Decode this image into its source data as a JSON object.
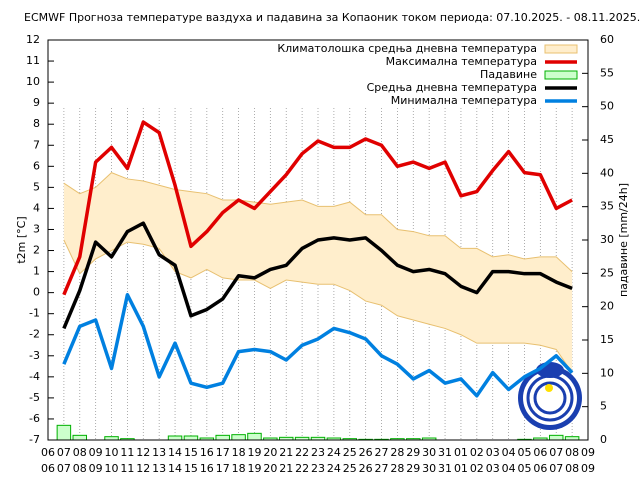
{
  "chart_data": {
    "type": "line",
    "title": "ECMWF Прогноза температуре ваздуха и падавина за Копаоник током периода: 07.10.2025. - 08.11.2025.",
    "y_label": "t2m [°C]",
    "y2_label": "падавине [mm/24h]",
    "categories": [
      "06",
      "07",
      "08",
      "09",
      "10",
      "11",
      "12",
      "13",
      "14",
      "15",
      "16",
      "17",
      "18",
      "19",
      "20",
      "21",
      "22",
      "23",
      "24",
      "25",
      "26",
      "27",
      "28",
      "29",
      "30",
      "31",
      "01",
      "02",
      "03",
      "04",
      "05",
      "06",
      "07",
      "08",
      "09"
    ],
    "ylim": [
      -7,
      12
    ],
    "yticks": [
      -7,
      -6,
      -5,
      -4,
      -3,
      -2,
      -1,
      0,
      1,
      2,
      3,
      4,
      5,
      6,
      7,
      8,
      9,
      10,
      11,
      12
    ],
    "y2lim": [
      0,
      60
    ],
    "y2ticks": [
      0,
      5,
      10,
      15,
      20,
      25,
      30,
      35,
      40,
      45,
      50,
      55,
      60
    ],
    "legend": "top-right",
    "series": [
      {
        "name": "Климатолошка средња дневна температура",
        "type": "band",
        "color": "#ffeecc",
        "edge_color": "#e8c070",
        "upper": [
          null,
          5.2,
          4.7,
          5.0,
          5.7,
          5.4,
          5.3,
          5.1,
          4.9,
          4.8,
          4.7,
          4.4,
          4.4,
          4.3,
          4.2,
          4.3,
          4.4,
          4.1,
          4.1,
          4.3,
          3.7,
          3.7,
          3.0,
          2.9,
          2.7,
          2.7,
          2.1,
          2.1,
          1.7,
          1.8,
          1.6,
          1.7,
          1.7,
          1.0,
          null
        ],
        "lower": [
          null,
          2.5,
          0.9,
          1.6,
          2.0,
          2.4,
          2.3,
          2.1,
          1.0,
          0.7,
          1.1,
          0.7,
          0.6,
          0.6,
          0.2,
          0.6,
          0.5,
          0.4,
          0.4,
          0.1,
          -0.4,
          -0.6,
          -1.1,
          -1.3,
          -1.5,
          -1.7,
          -2.0,
          -2.4,
          -2.4,
          -2.4,
          -2.4,
          -2.5,
          -2.7,
          -3.8,
          null
        ]
      },
      {
        "name": "Максимална температура",
        "type": "line",
        "color": "#e00000",
        "values": [
          null,
          -0.1,
          1.7,
          6.2,
          6.9,
          5.9,
          8.1,
          7.6,
          5.1,
          2.2,
          2.9,
          3.8,
          4.4,
          4.0,
          4.8,
          5.6,
          6.6,
          7.2,
          6.9,
          6.9,
          7.3,
          7.0,
          6.0,
          6.2,
          5.9,
          6.2,
          4.6,
          4.8,
          5.8,
          6.7,
          5.7,
          5.6,
          4.0,
          4.4,
          null
        ]
      },
      {
        "name": "Падавине",
        "type": "bar",
        "axis": "y2",
        "color": "#ccffcc",
        "edge_color": "#00b000",
        "values": [
          null,
          2.2,
          0.7,
          0,
          0.5,
          0.2,
          0,
          0,
          0.6,
          0.6,
          0.3,
          0.7,
          0.8,
          1.0,
          0.3,
          0.4,
          0.4,
          0.4,
          0.3,
          0.2,
          0.1,
          0.1,
          0.2,
          0.2,
          0.3,
          0,
          0,
          0,
          0,
          0,
          0.1,
          0.3,
          0.7,
          0.5,
          null
        ]
      },
      {
        "name": "Средња дневна температура",
        "type": "line",
        "color": "#000000",
        "values": [
          null,
          -1.7,
          0.1,
          2.4,
          1.7,
          2.9,
          3.3,
          1.8,
          1.3,
          -1.1,
          -0.8,
          -0.3,
          0.8,
          0.7,
          1.1,
          1.3,
          2.1,
          2.5,
          2.6,
          2.5,
          2.6,
          2.0,
          1.3,
          1.0,
          1.1,
          0.9,
          0.3,
          0.0,
          1.0,
          1.0,
          0.9,
          0.9,
          0.5,
          0.2,
          null
        ]
      },
      {
        "name": "Минимална температура",
        "type": "line",
        "color": "#0080e0",
        "values": [
          null,
          -3.4,
          -1.6,
          -1.3,
          -3.6,
          -0.1,
          -1.6,
          -4.0,
          -2.4,
          -4.3,
          -4.5,
          -4.3,
          -2.8,
          -2.7,
          -2.8,
          -3.2,
          -2.5,
          -2.2,
          -1.7,
          -1.9,
          -2.2,
          -3.0,
          -3.4,
          -4.1,
          -3.7,
          -4.3,
          -4.1,
          -4.9,
          -3.8,
          -4.6,
          -4.0,
          -3.6,
          -3.0,
          -3.8,
          null
        ]
      }
    ]
  }
}
